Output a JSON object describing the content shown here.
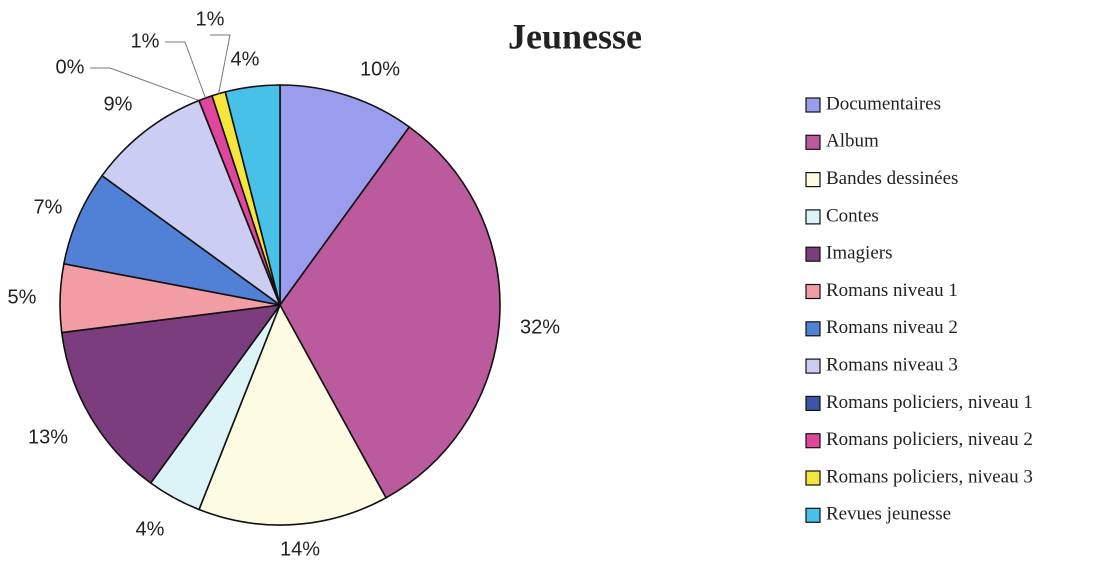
{
  "chart_data": {
    "type": "pie",
    "title": "Jeunesse",
    "categories": [
      "Documentaires",
      "Album",
      "Bandes dessinées",
      "Contes",
      "Imagiers",
      "Romans niveau 1",
      "Romans niveau 2",
      "Romans niveau 3",
      "Romans policiers, niveau 1",
      "Romans policiers, niveau 2",
      "Romans policiers, niveau 3",
      "Revues jeunesse"
    ],
    "values": [
      10,
      32,
      14,
      4,
      13,
      5,
      7,
      9,
      0,
      1,
      1,
      4
    ],
    "value_labels": [
      "10%",
      "32%",
      "14%",
      "4%",
      "13%",
      "5%",
      "7%",
      "9%",
      "0%",
      "1%",
      "1%",
      "4%"
    ],
    "colors": [
      "#9a9ced",
      "#bb5a9c",
      "#fdfbe2",
      "#dcf4f8",
      "#7b3d7e",
      "#f29ca3",
      "#5081d6",
      "#cbcdf2",
      "#3a56a8",
      "#e0469b",
      "#f4e63c",
      "#48c1e9"
    ],
    "legend": "right"
  }
}
